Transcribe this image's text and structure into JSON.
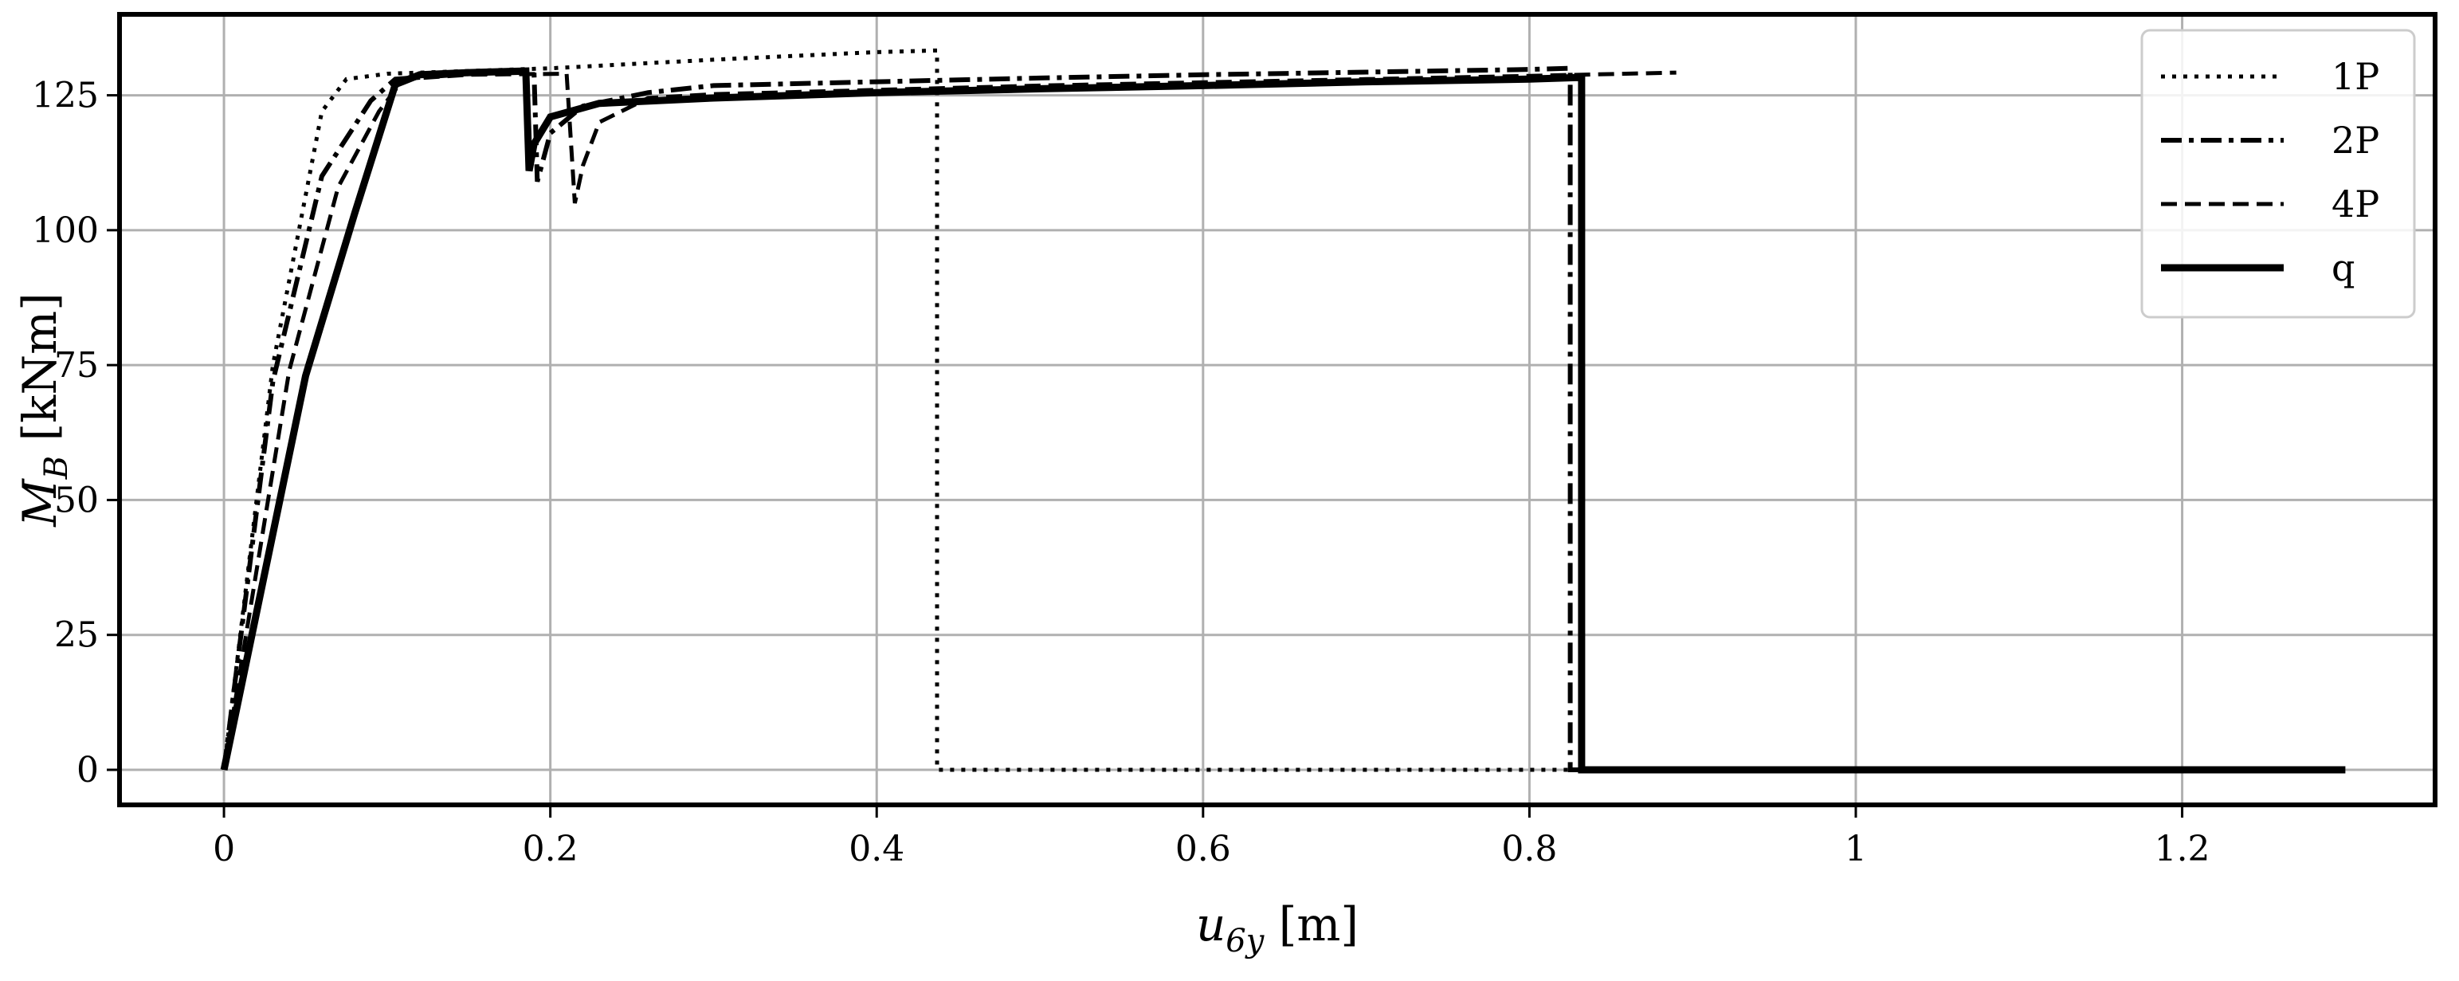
{
  "chart_data": {
    "type": "line",
    "xlabel": "u",
    "xlabel_sub": "6y",
    "xlabel_unit": " [m]",
    "ylabel": "M",
    "ylabel_sub": "B",
    "ylabel_unit": " [kNm]",
    "xlim": [
      -0.064,
      1.355
    ],
    "ylim": [
      -6.5,
      140
    ],
    "xticks": [
      0,
      0.2,
      0.4,
      0.6,
      0.8,
      1.0,
      1.2
    ],
    "xtick_labels": [
      "0",
      "0.2",
      "0.4",
      "0.6",
      "0.8",
      "1",
      "1.2"
    ],
    "yticks": [
      0,
      25,
      50,
      75,
      100,
      125
    ],
    "ytick_labels": [
      "0",
      "25",
      "50",
      "75",
      "100",
      "125"
    ],
    "grid": true,
    "legend_position": "top-right",
    "series": [
      {
        "name": "1P",
        "style": "dotted",
        "color": "#000000",
        "x": [
          0,
          0.03,
          0.06,
          0.075,
          0.1,
          0.15,
          0.2,
          0.25,
          0.3,
          0.35,
          0.4,
          0.435,
          0.437,
          0.437,
          0.6,
          0.82,
          0.83
        ],
        "y": [
          0,
          75,
          122,
          128,
          129,
          129.5,
          130,
          130.8,
          131.6,
          132.3,
          133,
          133.3,
          133.3,
          0,
          0,
          0,
          0
        ]
      },
      {
        "name": "2P",
        "style": "dashdot",
        "color": "#000000",
        "x": [
          0,
          0.03,
          0.06,
          0.09,
          0.105,
          0.15,
          0.19,
          0.192,
          0.2,
          0.22,
          0.26,
          0.3,
          0.4,
          0.5,
          0.6,
          0.7,
          0.8,
          0.825,
          0.825,
          0.9,
          1.0,
          1.1,
          1.2,
          1.23
        ],
        "y": [
          0,
          72,
          110,
          124,
          128,
          129,
          129.3,
          109,
          118,
          123,
          125.5,
          126.8,
          127.5,
          128.2,
          128.8,
          129.3,
          129.8,
          130,
          0,
          0,
          0,
          0,
          0,
          0
        ]
      },
      {
        "name": "4P",
        "style": "dashed",
        "color": "#000000",
        "x": [
          0,
          0.04,
          0.07,
          0.095,
          0.11,
          0.15,
          0.21,
          0.215,
          0.22,
          0.23,
          0.26,
          0.3,
          0.4,
          0.5,
          0.6,
          0.7,
          0.8,
          0.89
        ],
        "y": [
          0,
          74,
          108,
          122,
          128,
          128.8,
          129,
          105,
          112,
          120,
          124.5,
          125.2,
          126,
          126.8,
          127.4,
          128,
          128.6,
          129.2
        ]
      },
      {
        "name": "q",
        "style": "solid",
        "color": "#000000",
        "x": [
          0,
          0.05,
          0.08,
          0.105,
          0.12,
          0.15,
          0.185,
          0.187,
          0.19,
          0.2,
          0.23,
          0.3,
          0.4,
          0.5,
          0.6,
          0.7,
          0.8,
          0.83,
          0.832,
          0.832,
          0.9,
          1.0,
          1.1,
          1.2,
          1.3
        ],
        "y": [
          0,
          73,
          103,
          127,
          128.8,
          129.2,
          129.5,
          111,
          116,
          121,
          123.5,
          124.5,
          125.5,
          126.2,
          126.8,
          127.5,
          128,
          128.3,
          128.3,
          0,
          0,
          0,
          0,
          0,
          0
        ]
      }
    ]
  }
}
